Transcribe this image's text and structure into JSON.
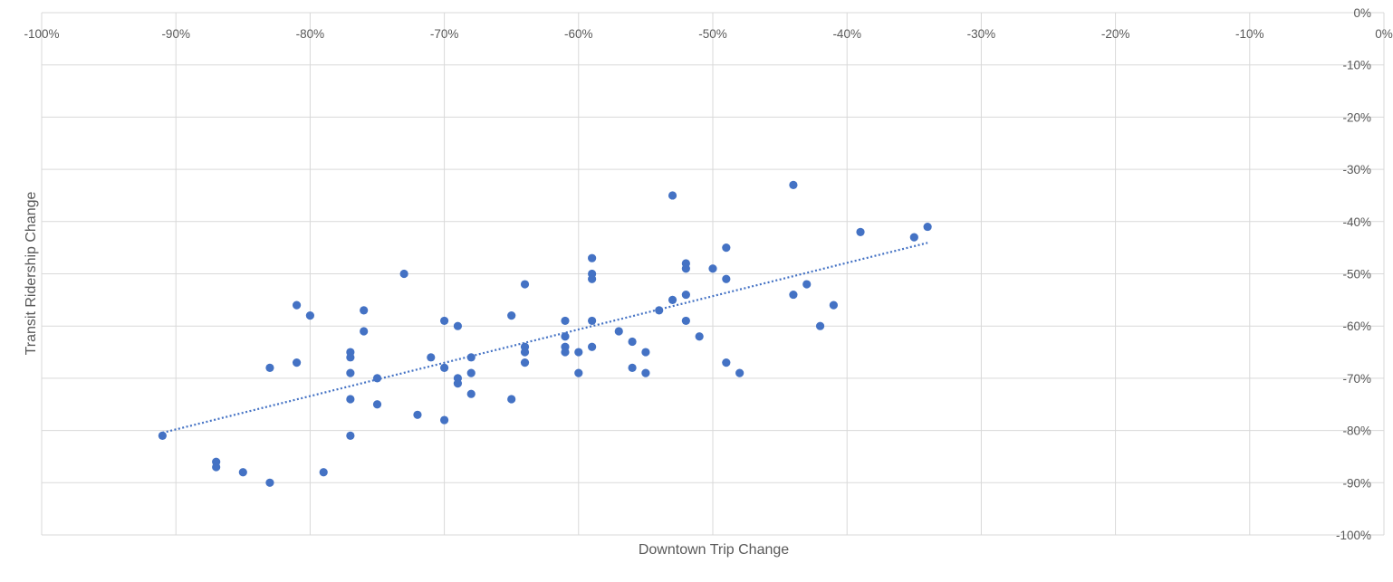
{
  "chart_data": {
    "type": "scatter",
    "title": "",
    "xlabel": "Downtown Trip Change",
    "ylabel": "Transit Ridership Change",
    "xlim": [
      -100,
      0
    ],
    "ylim": [
      -100,
      0
    ],
    "x_ticks": [
      "-100%",
      "-90%",
      "-80%",
      "-70%",
      "-60%",
      "-50%",
      "-40%",
      "-30%",
      "-20%",
      "-10%",
      "0%"
    ],
    "y_ticks": [
      "0%",
      "-10%",
      "-20%",
      "-30%",
      "-40%",
      "-50%",
      "-60%",
      "-70%",
      "-80%",
      "-90%",
      "-100%"
    ],
    "grid": true,
    "legend": "none",
    "marker_color": "#4472c4",
    "trendline": {
      "type": "linear",
      "style": "dotted",
      "x_start": -91,
      "x_end": -34
    },
    "points": [
      {
        "x": -91,
        "y": -81
      },
      {
        "x": -87,
        "y": -86
      },
      {
        "x": -87,
        "y": -87
      },
      {
        "x": -85,
        "y": -88
      },
      {
        "x": -83,
        "y": -90
      },
      {
        "x": -83,
        "y": -68
      },
      {
        "x": -81,
        "y": -56
      },
      {
        "x": -81,
        "y": -67
      },
      {
        "x": -80,
        "y": -58
      },
      {
        "x": -79,
        "y": -88
      },
      {
        "x": -77,
        "y": -65
      },
      {
        "x": -77,
        "y": -66
      },
      {
        "x": -77,
        "y": -69
      },
      {
        "x": -77,
        "y": -74
      },
      {
        "x": -77,
        "y": -81
      },
      {
        "x": -76,
        "y": -57
      },
      {
        "x": -76,
        "y": -61
      },
      {
        "x": -75,
        "y": -70
      },
      {
        "x": -75,
        "y": -75
      },
      {
        "x": -73,
        "y": -50
      },
      {
        "x": -72,
        "y": -77
      },
      {
        "x": -71,
        "y": -66
      },
      {
        "x": -70,
        "y": -59
      },
      {
        "x": -70,
        "y": -68
      },
      {
        "x": -70,
        "y": -78
      },
      {
        "x": -69,
        "y": -60
      },
      {
        "x": -69,
        "y": -70
      },
      {
        "x": -69,
        "y": -71
      },
      {
        "x": -68,
        "y": -66
      },
      {
        "x": -68,
        "y": -69
      },
      {
        "x": -68,
        "y": -73
      },
      {
        "x": -65,
        "y": -58
      },
      {
        "x": -65,
        "y": -74
      },
      {
        "x": -64,
        "y": -52
      },
      {
        "x": -64,
        "y": -64
      },
      {
        "x": -64,
        "y": -65
      },
      {
        "x": -64,
        "y": -67
      },
      {
        "x": -61,
        "y": -59
      },
      {
        "x": -61,
        "y": -62
      },
      {
        "x": -61,
        "y": -64
      },
      {
        "x": -61,
        "y": -65
      },
      {
        "x": -60,
        "y": -65
      },
      {
        "x": -60,
        "y": -69
      },
      {
        "x": -59,
        "y": -47
      },
      {
        "x": -59,
        "y": -50
      },
      {
        "x": -59,
        "y": -51
      },
      {
        "x": -59,
        "y": -59
      },
      {
        "x": -59,
        "y": -64
      },
      {
        "x": -57,
        "y": -61
      },
      {
        "x": -56,
        "y": -63
      },
      {
        "x": -56,
        "y": -68
      },
      {
        "x": -55,
        "y": -65
      },
      {
        "x": -55,
        "y": -69
      },
      {
        "x": -54,
        "y": -57
      },
      {
        "x": -53,
        "y": -35
      },
      {
        "x": -53,
        "y": -55
      },
      {
        "x": -52,
        "y": -48
      },
      {
        "x": -52,
        "y": -49
      },
      {
        "x": -52,
        "y": -54
      },
      {
        "x": -52,
        "y": -59
      },
      {
        "x": -51,
        "y": -62
      },
      {
        "x": -50,
        "y": -49
      },
      {
        "x": -49,
        "y": -45
      },
      {
        "x": -49,
        "y": -51
      },
      {
        "x": -49,
        "y": -67
      },
      {
        "x": -48,
        "y": -69
      },
      {
        "x": -44,
        "y": -33
      },
      {
        "x": -44,
        "y": -54
      },
      {
        "x": -43,
        "y": -52
      },
      {
        "x": -42,
        "y": -60
      },
      {
        "x": -41,
        "y": -56
      },
      {
        "x": -39,
        "y": -42
      },
      {
        "x": -35,
        "y": -43
      },
      {
        "x": -34,
        "y": -41
      }
    ]
  }
}
